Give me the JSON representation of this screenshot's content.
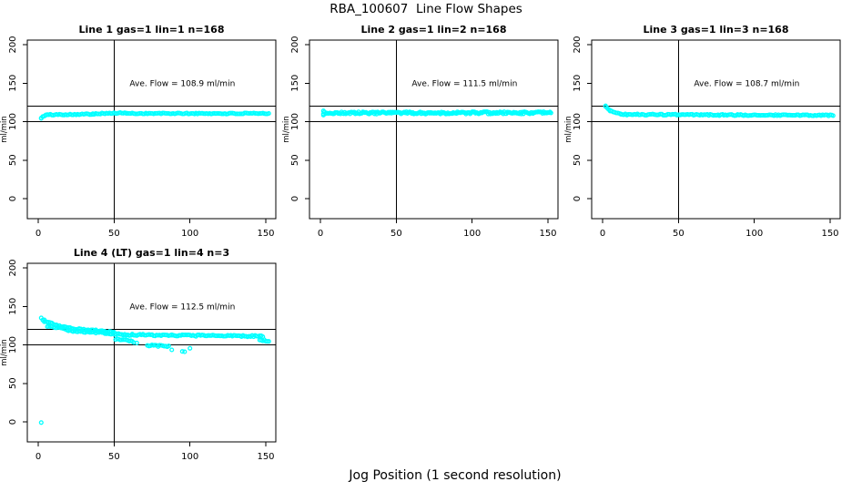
{
  "chart_data": {
    "type": "scatter",
    "title": "RBA_100607  Line Flow Shapes",
    "xlabel": "Jog Position (1 second resolution)",
    "ylabel": "ml/min",
    "point_color": "#00ffff",
    "axis_color": "#000000",
    "background": "#ffffff",
    "xticks": [
      0,
      50,
      100,
      150
    ],
    "yticks": [
      0,
      50,
      100,
      150,
      200
    ],
    "xlim": [
      -7,
      157
    ],
    "ylim": [
      -26,
      206
    ],
    "grid": "off",
    "vline_x": 50,
    "hlines": [
      100,
      120
    ],
    "annotation_pos": {
      "x": 95,
      "y": 150
    },
    "subplots": [
      {
        "id": "line1",
        "cell": 0,
        "title": "Line 1 gas=1 lin=1 n=168",
        "n": 168,
        "ave_flow": 108.9,
        "ave_flow_text": "Ave. Flow =  108.9  ml/min",
        "seed": 101,
        "spacing": 1.0,
        "jitter": 0.7,
        "segments": [
          [
            2,
            105.2,
            5,
            108.2
          ],
          [
            5,
            108.8,
            36,
            109.8
          ],
          [
            36,
            110.3,
            58,
            111.2
          ],
          [
            58,
            110.6,
            152,
            110.4
          ]
        ],
        "outliers": [
          [
            2,
            104.2
          ],
          [
            3,
            106.5
          ]
        ]
      },
      {
        "id": "line2",
        "cell": 1,
        "title": "Line 2 gas=1 lin=2 n=168",
        "n": 168,
        "ave_flow": 111.5,
        "ave_flow_text": "Ave. Flow =  111.5  ml/min",
        "seed": 202,
        "spacing": 0.7,
        "jitter": 1.5,
        "segments": [
          [
            2,
            111.2,
            152,
            111.4
          ]
        ],
        "outliers": [
          [
            2,
            114.0
          ],
          [
            2,
            108.5
          ]
        ]
      },
      {
        "id": "line3",
        "cell": 2,
        "title": "Line 3 gas=1 lin=3 n=168",
        "n": 168,
        "ave_flow": 108.7,
        "ave_flow_text": "Ave. Flow =  108.7  ml/min",
        "seed": 303,
        "spacing": 1.0,
        "jitter": 0.8,
        "segments": [
          [
            2,
            118.8,
            5,
            114.5
          ],
          [
            5,
            114.0,
            12,
            110.0
          ],
          [
            12,
            109.3,
            80,
            108.6
          ],
          [
            80,
            108.5,
            152,
            108.2
          ]
        ],
        "outliers": [
          [
            2,
            120.5
          ]
        ]
      },
      {
        "id": "line4",
        "cell": 3,
        "title": "Line 4 (LT) gas=1 lin=4 n=3",
        "n": 3,
        "ave_flow": 112.5,
        "ave_flow_text": "Ave. Flow =  112.5  ml/min",
        "seed": 404,
        "spacing": 1.0,
        "jitter": 1.0,
        "segments": [
          [
            3,
            132.5,
            12,
            125.5
          ],
          [
            12,
            125.0,
            22,
            121.5
          ],
          [
            22,
            121.0,
            38,
            118.5
          ],
          [
            38,
            118.2,
            50,
            116.3
          ],
          [
            6,
            124.5,
            20,
            119.5
          ],
          [
            20,
            118.5,
            50,
            114.5
          ],
          [
            51,
            114.5,
            62,
            112.5
          ],
          [
            51,
            107.5,
            62,
            104.5
          ],
          [
            62,
            113.2,
            88,
            112.2
          ],
          [
            72,
            99.2,
            86,
            98.3
          ],
          [
            88,
            112.3,
            148,
            111.2
          ],
          [
            146,
            106.5,
            152,
            104.8
          ]
        ],
        "outliers": [
          [
            2,
            -1.0
          ],
          [
            2,
            135.0
          ],
          [
            4,
            130.0
          ],
          [
            88,
            93.5
          ],
          [
            95,
            91.5
          ],
          [
            96.5,
            91.0
          ],
          [
            100,
            95.5
          ],
          [
            63,
            103.0
          ],
          [
            65,
            102.5
          ]
        ]
      }
    ]
  }
}
